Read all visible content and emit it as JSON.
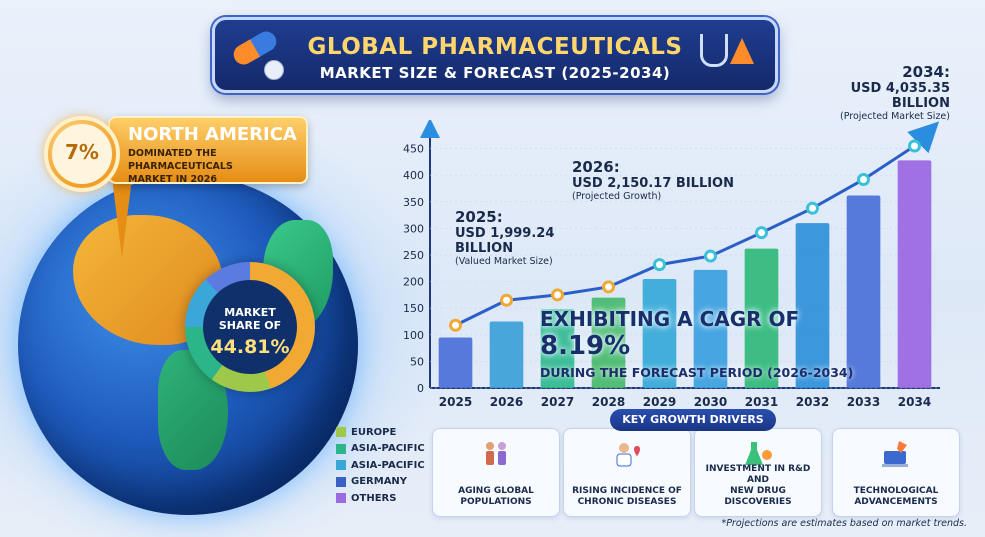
{
  "header": {
    "title": "GLOBAL PHARMACEUTICALS",
    "subtitle": "MARKET SIZE & FORECAST (2025-2034)"
  },
  "callout": {
    "badge": "7%",
    "region": "NORTH AMERICA",
    "text_line1": "DOMINATED THE PHARMACEUTICALS",
    "text_line2": "MARKET IN 2026"
  },
  "market_share": {
    "label_line1": "MARKET",
    "label_line2": "SHARE OF",
    "value": "44.81%"
  },
  "legend": [
    {
      "label": "EUROPE",
      "color": "#9dc84a"
    },
    {
      "label": "ASIA-PACIFIC",
      "color": "#2db58a"
    },
    {
      "label": "ASIA-PACIFIC",
      "color": "#3aa7d8"
    },
    {
      "label": "GERMANY",
      "color": "#3b5fc4"
    },
    {
      "label": "OTHERS",
      "color": "#9a6be0"
    }
  ],
  "annotations": {
    "a2025": {
      "year": "2025:",
      "value_line1": "USD 1,999.24",
      "value_line2": "BILLION",
      "note": "(Valued Market Size)"
    },
    "a2026": {
      "year": "2026:",
      "value": "USD 2,150.17 BILLION",
      "note": "(Projected Growth)"
    },
    "a2034": {
      "year": "2034:",
      "value": "USD 4,035.35 BILLION",
      "note": "(Projected Market Size)"
    }
  },
  "cagr": {
    "prefix": "EXHIBITING A CAGR OF",
    "value": "8.19%",
    "period": "DURING THE FORECAST PERIOD (2026-2034)"
  },
  "drivers": {
    "title": "KEY GROWTH DRIVERS",
    "items": [
      {
        "line1": "AGING GLOBAL",
        "line2": "POPULATIONS",
        "icon": "family-icon"
      },
      {
        "line1": "RISING INCIDENCE OF",
        "line2": "CHRONIC DISEASES",
        "icon": "doctor-icon"
      },
      {
        "line1": "INVESTMENT IN R&D AND",
        "line2": "NEW DRUG DISCOVERIES",
        "icon": "lab-flask-icon"
      },
      {
        "line1": "TECHNOLOGICAL",
        "line2": "ADVANCEMENTS",
        "icon": "rocket-laptop-icon"
      }
    ]
  },
  "footnote": "*Projections are estimates based on market trends.",
  "chart_data": {
    "type": "bar",
    "categories": [
      "2025",
      "2026",
      "2027",
      "2028",
      "2029",
      "2030",
      "2031",
      "2032",
      "2033",
      "2034"
    ],
    "values": [
      95,
      125,
      148,
      170,
      205,
      222,
      262,
      310,
      362,
      428
    ],
    "line_values": [
      118,
      165,
      175,
      190,
      232,
      248,
      292,
      338,
      392,
      455
    ],
    "colors": [
      "#4a6fd8",
      "#3b9fd8",
      "#2fb88f",
      "#45b86a",
      "#36a8d8",
      "#3a9ee0",
      "#2fb87a",
      "#2f8fd8",
      "#4a70d8",
      "#9a66e0"
    ],
    "yticks": [
      0,
      50,
      100,
      150,
      200,
      250,
      300,
      350,
      400,
      450
    ],
    "ylim": [
      0,
      470
    ],
    "xlabel": "",
    "ylabel": ""
  }
}
